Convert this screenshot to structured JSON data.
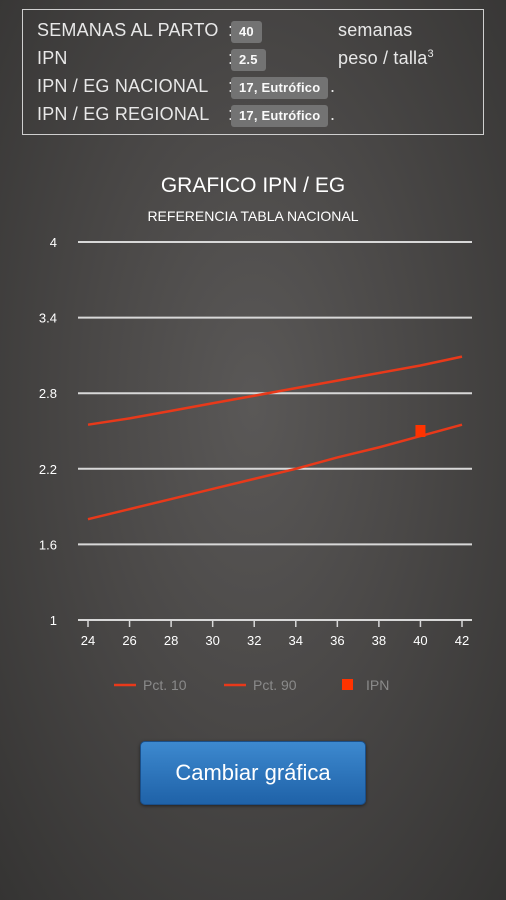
{
  "info": {
    "rows": [
      {
        "label": "SEMANAS AL PARTO",
        "value": "40",
        "unit": "semanas"
      },
      {
        "label": "IPN",
        "value": "2.5",
        "unit": "peso / talla",
        "unit_sup": "3"
      },
      {
        "label": "IPN / EG NACIONAL",
        "value": "17, Eutrófico",
        "suffix": "."
      },
      {
        "label": "IPN / EG REGIONAL",
        "value": "17, Eutrófico",
        "suffix": "."
      }
    ]
  },
  "chart_data": {
    "type": "line",
    "title": "GRAFICO IPN / EG",
    "subtitle": "REFERENCIA TABLA NACIONAL",
    "x_ticks": [
      24,
      26,
      28,
      30,
      32,
      34,
      36,
      38,
      40,
      42
    ],
    "y_ticks": [
      "4",
      "3.4",
      "2.8",
      "2.2",
      "1.6",
      "1"
    ],
    "xlim": [
      24,
      42
    ],
    "ylim": [
      1,
      4
    ],
    "grid": true,
    "legend_position": "bottom",
    "series": [
      {
        "name": "Pct. 10",
        "type": "line",
        "color": "#e8391a",
        "x": [
          24,
          26,
          28,
          30,
          32,
          34,
          36,
          38,
          40,
          42
        ],
        "y": [
          1.8,
          1.88,
          1.96,
          2.04,
          2.12,
          2.2,
          2.29,
          2.37,
          2.46,
          2.55
        ]
      },
      {
        "name": "Pct. 90",
        "type": "line",
        "color": "#e8391a",
        "x": [
          24,
          26,
          28,
          30,
          32,
          34,
          36,
          38,
          40,
          42
        ],
        "y": [
          2.55,
          2.6,
          2.66,
          2.72,
          2.78,
          2.84,
          2.9,
          2.96,
          3.02,
          3.09
        ]
      },
      {
        "name": "IPN",
        "type": "scatter",
        "color": "#ff3300",
        "x": [
          40
        ],
        "y": [
          2.5
        ]
      }
    ]
  },
  "button": {
    "label": "Cambiar gráfica"
  },
  "colors": {
    "accent": "#2a72bb",
    "series": "#e8391a",
    "grid": "#d8d8d8"
  }
}
